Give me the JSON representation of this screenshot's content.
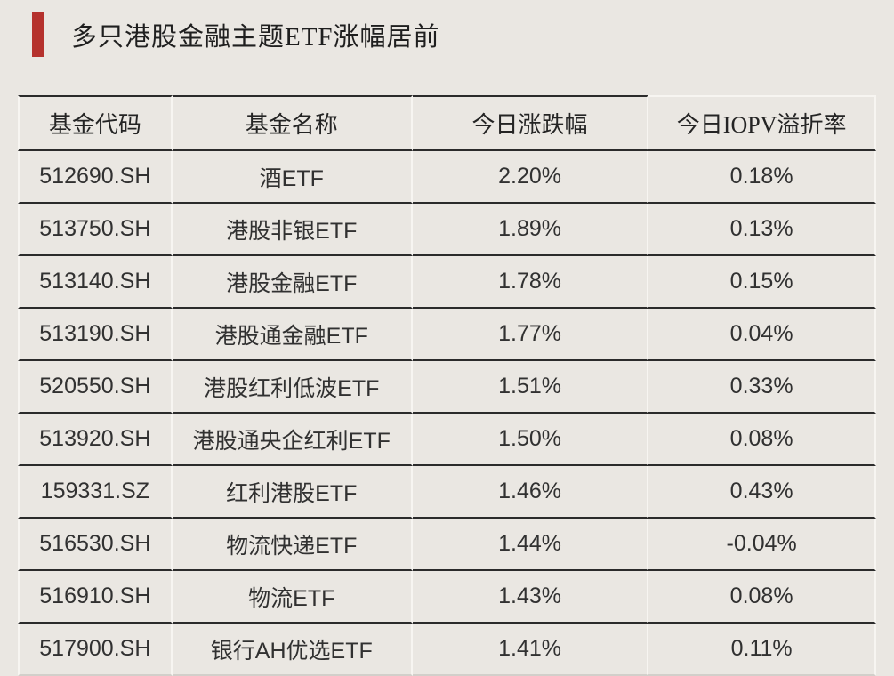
{
  "page": {
    "background_color": "#EAE7E2",
    "accent_color": "#B5322D",
    "rule_color": "#2b2b2b"
  },
  "header": {
    "title": "多只港股金融主题ETF涨幅居前"
  },
  "chart_data": {
    "type": "table",
    "title": "多只港股金融主题ETF涨幅居前",
    "columns": [
      "基金代码",
      "基金名称",
      "今日涨跌幅",
      "今日IOPV溢折率"
    ],
    "rows": [
      [
        "512690.SH",
        "酒ETF",
        "2.20%",
        "0.18%"
      ],
      [
        "513750.SH",
        "港股非银ETF",
        "1.89%",
        "0.13%"
      ],
      [
        "513140.SH",
        "港股金融ETF",
        "1.78%",
        "0.15%"
      ],
      [
        "513190.SH",
        "港股通金融ETF",
        "1.77%",
        "0.04%"
      ],
      [
        "520550.SH",
        "港股红利低波ETF",
        "1.51%",
        "0.33%"
      ],
      [
        "513920.SH",
        "港股通央企红利ETF",
        "1.50%",
        "0.08%"
      ],
      [
        "159331.SZ",
        "红利港股ETF",
        "1.46%",
        "0.43%"
      ],
      [
        "516530.SH",
        "物流快递ETF",
        "1.44%",
        "-0.04%"
      ],
      [
        "516910.SH",
        "物流ETF",
        "1.43%",
        "0.08%"
      ],
      [
        "517900.SH",
        "银行AH优选ETF",
        "1.41%",
        "0.11%"
      ]
    ]
  }
}
